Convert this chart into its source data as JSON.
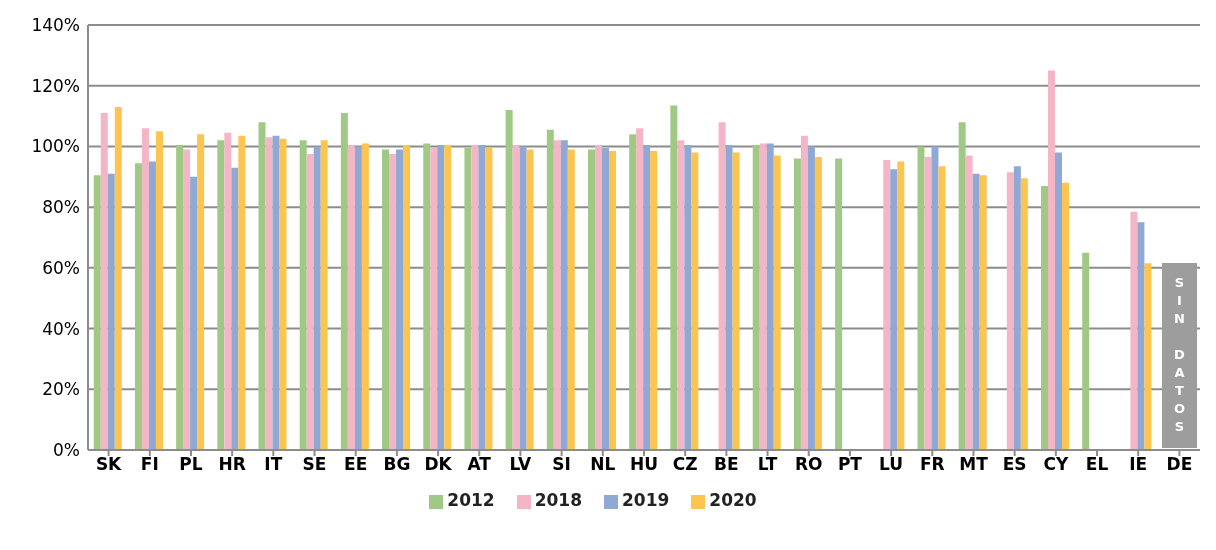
{
  "chart_data": {
    "type": "bar",
    "categories": [
      "SK",
      "FI",
      "PL",
      "HR",
      "IT",
      "SE",
      "EE",
      "BG",
      "DK",
      "AT",
      "LV",
      "SI",
      "NL",
      "HU",
      "CZ",
      "BE",
      "LT",
      "RO",
      "PT",
      "LU",
      "FR",
      "MT",
      "ES",
      "CY",
      "EL",
      "IE",
      "DE"
    ],
    "series": [
      {
        "name": "2012",
        "color": "#a0c986",
        "values": [
          90.5,
          94.5,
          100.5,
          102,
          108,
          102,
          111,
          99,
          101,
          99.5,
          112,
          105.5,
          99,
          104,
          113.5,
          null,
          100.5,
          96,
          96,
          null,
          100,
          108,
          null,
          87,
          65,
          null,
          null
        ]
      },
      {
        "name": "2018",
        "color": "#f4b5c6",
        "values": [
          111,
          106,
          99,
          104.5,
          103,
          97.5,
          100.5,
          97.5,
          99.5,
          100.5,
          100.5,
          102,
          100.5,
          106,
          102,
          108,
          101,
          103.5,
          null,
          95.5,
          96.5,
          97,
          91.5,
          125,
          null,
          78.5,
          null
        ]
      },
      {
        "name": "2019",
        "color": "#8fa8d4",
        "values": [
          91,
          95,
          90,
          93,
          103.5,
          100,
          100,
          99,
          100.5,
          100.5,
          100,
          102,
          99.5,
          100.5,
          100.5,
          100.5,
          101,
          100,
          null,
          92.5,
          100,
          91,
          93.5,
          98,
          null,
          75,
          null
        ]
      },
      {
        "name": "2020",
        "color": "#fcc54f",
        "values": [
          113,
          105,
          104,
          103.5,
          102.5,
          102,
          101,
          100.5,
          100.5,
          99.5,
          99,
          99,
          98.5,
          98.5,
          98,
          98,
          97,
          96.5,
          null,
          95,
          93.5,
          90.5,
          89.5,
          88,
          null,
          61.5,
          null
        ]
      }
    ],
    "ylim": [
      0,
      140
    ],
    "yticks": [
      {
        "value": 0,
        "label": "0%"
      },
      {
        "value": 20,
        "label": "20%"
      },
      {
        "value": 40,
        "label": "40%"
      },
      {
        "value": 60,
        "label": "60%"
      },
      {
        "value": 80,
        "label": "80%"
      },
      {
        "value": 100,
        "label": "100%"
      },
      {
        "value": 120,
        "label": "120%"
      },
      {
        "value": 140,
        "label": "140%"
      }
    ],
    "grid": "y",
    "legend": "bottom",
    "annotations": [
      "SIN DATOS"
    ]
  }
}
